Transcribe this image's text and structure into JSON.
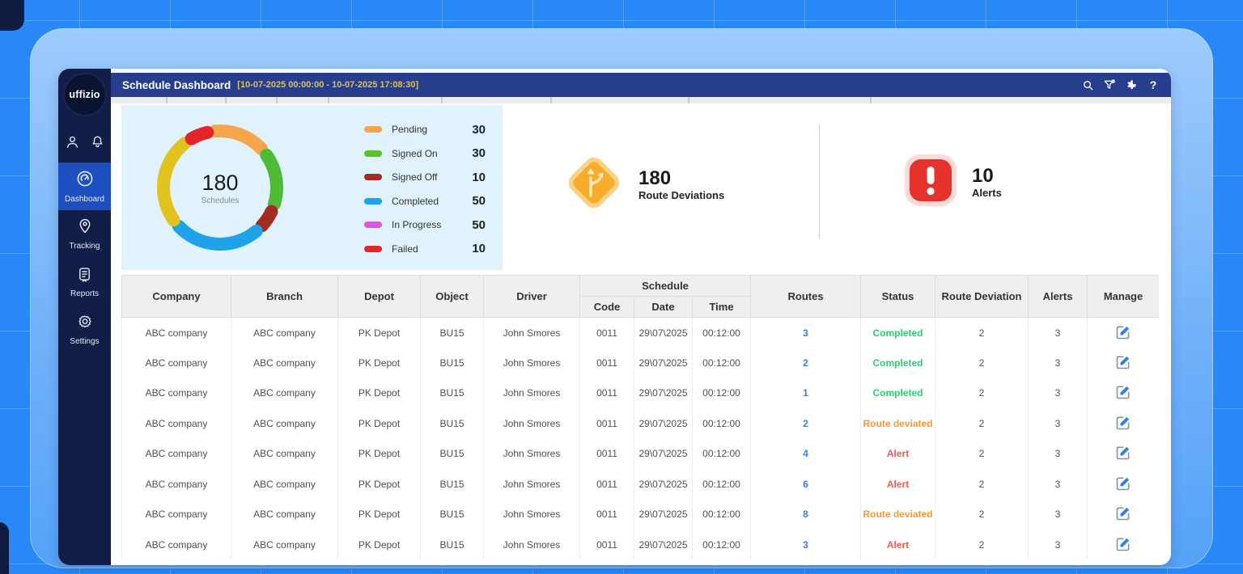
{
  "topbar": {
    "title": "Schedule Dashboard",
    "date_range": "[10-07-2025 00:00:00 - 10-07-2025 17:08:30]",
    "icons": [
      "search-icon",
      "filter-icon",
      "settings-icon",
      "help-icon"
    ],
    "help_glyph": "?"
  },
  "sidebar": {
    "logo_text": "uffizio",
    "items": [
      {
        "label": "Dashboard",
        "icon": "dashboard-gauge-icon",
        "active": true
      },
      {
        "label": "Tracking",
        "icon": "tracking-pin-icon",
        "active": false
      },
      {
        "label": "Reports",
        "icon": "reports-doc-icon",
        "active": false
      },
      {
        "label": "Settings",
        "icon": "settings-gear-icon",
        "active": false
      }
    ]
  },
  "chart_data": {
    "type": "pie",
    "variant": "donut-rounded-segments",
    "title": "Schedules",
    "total": 180,
    "center_value": "180",
    "center_label": "Schedules",
    "legend_position": "right",
    "segments": [
      {
        "label": "Pending",
        "value": 30,
        "legend_color": "#F6A54C",
        "arc_color": "#F6A54C"
      },
      {
        "label": "Signed On",
        "value": 30,
        "legend_color": "#5BC22A",
        "arc_color": "#4DBB34"
      },
      {
        "label": "Signed Off",
        "value": 10,
        "legend_color": "#A32C21",
        "arc_color": "#A32C21"
      },
      {
        "label": "Completed",
        "value": 50,
        "legend_color": "#1EA3E8",
        "arc_color": "#1EA3E8"
      },
      {
        "label": "In Progress",
        "value": 50,
        "legend_color": "#D65BE3",
        "arc_color": "#E2C31D"
      },
      {
        "label": "Failed",
        "value": 10,
        "legend_color": "#E5242B",
        "arc_color": "#E5242B"
      }
    ]
  },
  "kpis": {
    "route_deviations": {
      "value": "180",
      "label": "Route Deviations",
      "icon": "route-fork-sign-icon"
    },
    "alerts": {
      "value": "10",
      "label": "Alerts",
      "icon": "alert-exclamation-icon"
    }
  },
  "table": {
    "headers": {
      "company": "Company",
      "branch": "Branch",
      "depot": "Depot",
      "object": "Object",
      "driver": "Driver",
      "schedule": "Schedule",
      "code": "Code",
      "date": "Date",
      "time": "Time",
      "routes": "Routes",
      "status": "Status",
      "route_deviation": "Route Deviation",
      "alerts": "Alerts",
      "manage": "Manage"
    },
    "status_colors": {
      "Completed": "#2DCB73",
      "Route deviated": "#F59A3D",
      "Alert": "#ED5A51"
    },
    "rows": [
      {
        "company": "ABC company",
        "branch": "ABC company",
        "depot": "PK Depot",
        "object": "BU15",
        "driver": "John Smores",
        "code": "0011",
        "date": "29\\07\\2025",
        "time": "00:12:00",
        "routes": "3",
        "status": "Completed",
        "route_deviation": "2",
        "alerts": "3"
      },
      {
        "company": "ABC company",
        "branch": "ABC company",
        "depot": "PK Depot",
        "object": "BU15",
        "driver": "John Smores",
        "code": "0011",
        "date": "29\\07\\2025",
        "time": "00:12:00",
        "routes": "2",
        "status": "Completed",
        "route_deviation": "2",
        "alerts": "3"
      },
      {
        "company": "ABC company",
        "branch": "ABC company",
        "depot": "PK Depot",
        "object": "BU15",
        "driver": "John Smores",
        "code": "0011",
        "date": "29\\07\\2025",
        "time": "00:12:00",
        "routes": "1",
        "status": "Completed",
        "route_deviation": "2",
        "alerts": "3"
      },
      {
        "company": "ABC company",
        "branch": "ABC company",
        "depot": "PK Depot",
        "object": "BU15",
        "driver": "John Smores",
        "code": "0011",
        "date": "29\\07\\2025",
        "time": "00:12:00",
        "routes": "2",
        "status": "Route deviated",
        "route_deviation": "2",
        "alerts": "3"
      },
      {
        "company": "ABC company",
        "branch": "ABC company",
        "depot": "PK Depot",
        "object": "BU15",
        "driver": "John Smores",
        "code": "0011",
        "date": "29\\07\\2025",
        "time": "00:12:00",
        "routes": "4",
        "status": "Alert",
        "route_deviation": "2",
        "alerts": "3"
      },
      {
        "company": "ABC company",
        "branch": "ABC company",
        "depot": "PK Depot",
        "object": "BU15",
        "driver": "John Smores",
        "code": "0011",
        "date": "29\\07\\2025",
        "time": "00:12:00",
        "routes": "6",
        "status": "Alert",
        "route_deviation": "2",
        "alerts": "3"
      },
      {
        "company": "ABC company",
        "branch": "ABC company",
        "depot": "PK Depot",
        "object": "BU15",
        "driver": "John Smores",
        "code": "0011",
        "date": "29\\07\\2025",
        "time": "00:12:00",
        "routes": "8",
        "status": "Route deviated",
        "route_deviation": "2",
        "alerts": "3"
      },
      {
        "company": "ABC company",
        "branch": "ABC company",
        "depot": "PK Depot",
        "object": "BU15",
        "driver": "John Smores",
        "code": "0011",
        "date": "29\\07\\2025",
        "time": "00:12:00",
        "routes": "3",
        "status": "Alert",
        "route_deviation": "2",
        "alerts": "3"
      }
    ]
  }
}
